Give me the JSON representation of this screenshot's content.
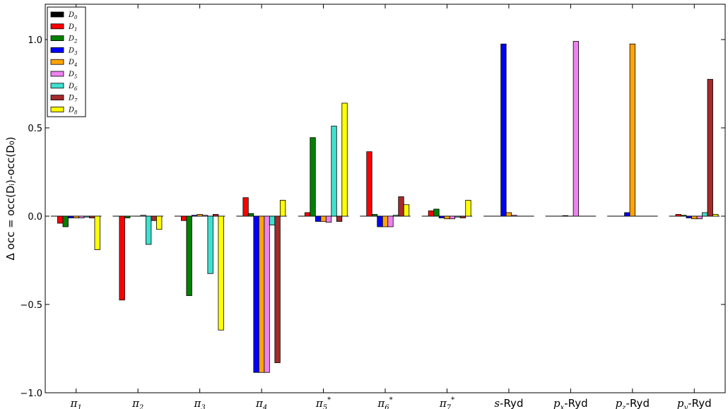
{
  "chart_data": {
    "type": "bar",
    "ylabel": "Δ occ = occ(D_i)-occ(D_0)",
    "ylim": [
      -1.0,
      1.2
    ],
    "yticks": [
      -1.0,
      -0.5,
      0.0,
      0.5,
      1.0
    ],
    "ytick_labels": [
      "−1.0",
      "−0.5",
      "0.0",
      "0.5",
      "1.0"
    ],
    "legend_position": "top-left",
    "categories": [
      "π1",
      "π2",
      "π3",
      "π4",
      "π5*",
      "π6*",
      "π7*",
      "s-Ryd",
      "px-Ryd",
      "pz-Ryd",
      "py-Ryd"
    ],
    "category_labels": [
      {
        "main": "π",
        "sub": "1",
        "sup": ""
      },
      {
        "main": "π",
        "sub": "2",
        "sup": ""
      },
      {
        "main": "π",
        "sub": "3",
        "sup": ""
      },
      {
        "main": "π",
        "sub": "4",
        "sup": ""
      },
      {
        "main": "π",
        "sub": "5",
        "sup": "*"
      },
      {
        "main": "π",
        "sub": "6",
        "sup": "*"
      },
      {
        "main": "π",
        "sub": "7",
        "sup": "*"
      },
      {
        "main": "s",
        "sub": "",
        "sup": "",
        "suffix": "-Ryd"
      },
      {
        "main": "p",
        "sub": "x",
        "sup": "",
        "suffix": "-Ryd"
      },
      {
        "main": "p",
        "sub": "z",
        "sup": "",
        "suffix": "-Ryd"
      },
      {
        "main": "p",
        "sub": "y",
        "sup": "",
        "suffix": "-Ryd"
      }
    ],
    "series": [
      {
        "name": "D0",
        "label_main": "D",
        "label_sub": "0",
        "color": "#000000",
        "values": [
          0,
          0,
          0,
          0,
          0,
          0,
          0,
          0,
          0,
          0,
          0
        ]
      },
      {
        "name": "D1",
        "label_main": "D",
        "label_sub": "1",
        "color": "#ff0000",
        "values": [
          -0.04,
          -0.475,
          -0.025,
          0.105,
          0.02,
          0.365,
          0.03,
          0.0,
          0.0,
          0.0,
          0.01
        ]
      },
      {
        "name": "D2",
        "label_main": "D",
        "label_sub": "2",
        "color": "#008000",
        "values": [
          -0.06,
          -0.01,
          -0.45,
          0.015,
          0.445,
          0.01,
          0.04,
          0.0,
          0.0,
          0.0,
          0.005
        ]
      },
      {
        "name": "D3",
        "label_main": "D",
        "label_sub": "3",
        "color": "#0000ff",
        "values": [
          -0.01,
          0.0,
          0.005,
          -0.885,
          -0.03,
          -0.06,
          -0.01,
          0.975,
          0.003,
          0.02,
          -0.01
        ]
      },
      {
        "name": "D4",
        "label_main": "D",
        "label_sub": "4",
        "color": "#ffa500",
        "values": [
          -0.01,
          0.0,
          0.01,
          -0.885,
          -0.03,
          -0.06,
          -0.015,
          0.02,
          0.0,
          0.975,
          -0.015
        ]
      },
      {
        "name": "D5",
        "label_main": "D",
        "label_sub": "5",
        "color": "#ee82ee",
        "values": [
          -0.01,
          0.005,
          0.005,
          -0.885,
          -0.035,
          -0.06,
          -0.015,
          0.005,
          0.99,
          0.0,
          -0.015
        ]
      },
      {
        "name": "D6",
        "label_main": "D",
        "label_sub": "6",
        "color": "#40e0d0",
        "values": [
          -0.005,
          -0.16,
          -0.325,
          -0.05,
          0.51,
          0.005,
          -0.005,
          0.0,
          0.0,
          0.0,
          0.02
        ]
      },
      {
        "name": "D7",
        "label_main": "D",
        "label_sub": "7",
        "color": "#a52a2a",
        "values": [
          -0.01,
          -0.025,
          0.01,
          -0.83,
          -0.03,
          0.11,
          -0.01,
          0.0,
          0.0,
          0.0,
          0.775
        ]
      },
      {
        "name": "D8",
        "label_main": "D",
        "label_sub": "8",
        "color": "#ffff00",
        "values": [
          -0.19,
          -0.075,
          -0.645,
          0.09,
          0.64,
          0.065,
          0.09,
          0.0,
          0.0,
          0.0,
          0.01
        ]
      }
    ]
  }
}
